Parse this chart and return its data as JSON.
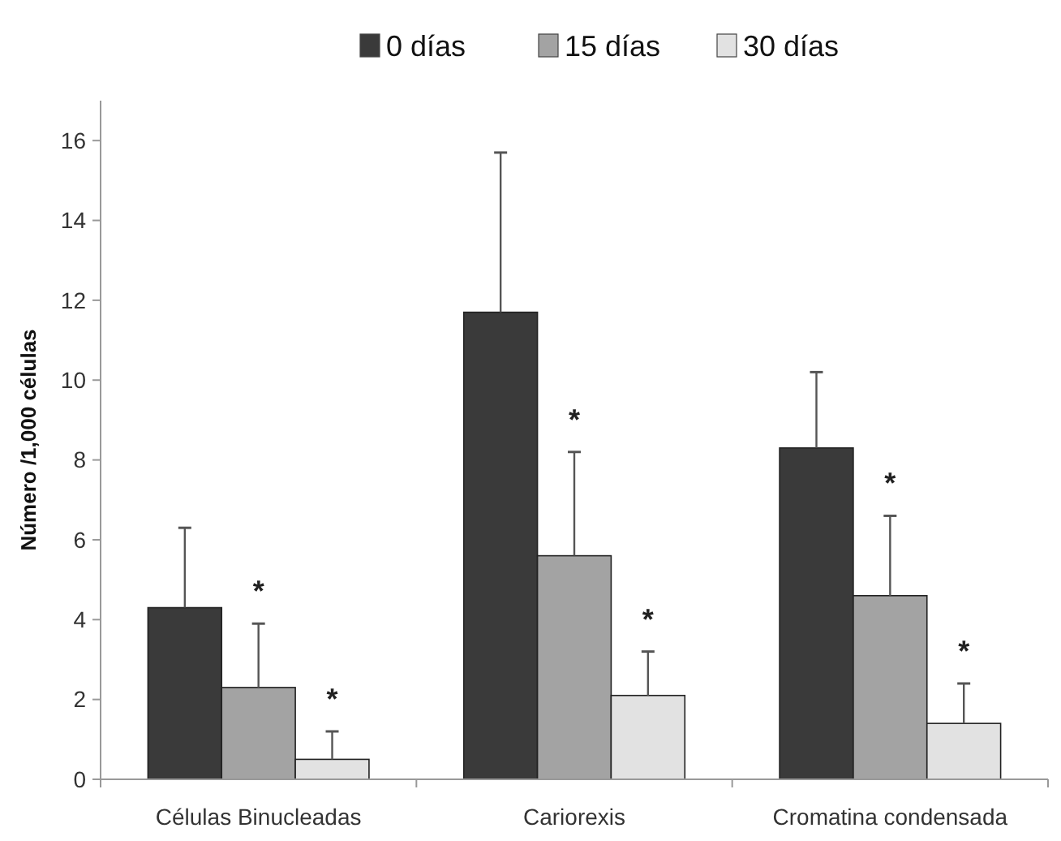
{
  "chart_data": {
    "type": "bar",
    "ylabel": "Número /1,000 células",
    "categories": [
      "Células Binucleadas",
      "Cariorexis",
      "Cromatina condensada"
    ],
    "series": [
      {
        "name": "0 días",
        "color": "#3a3a3a",
        "values": [
          4.3,
          11.7,
          8.3
        ],
        "errors": [
          [
            4.3,
            6.3
          ],
          [
            11.7,
            15.7
          ],
          [
            8.3,
            10.2
          ]
        ]
      },
      {
        "name": "15 días",
        "color": "#a3a3a3",
        "values": [
          2.3,
          5.6,
          4.6
        ],
        "errors": [
          [
            2.3,
            3.9
          ],
          [
            5.6,
            8.2
          ],
          [
            4.6,
            6.6
          ]
        ]
      },
      {
        "name": "30 días",
        "color": "#e2e2e2",
        "values": [
          0.5,
          2.1,
          1.4
        ],
        "errors": [
          [
            0.5,
            1.2
          ],
          [
            2.1,
            3.2
          ],
          [
            1.4,
            2.4
          ]
        ]
      }
    ],
    "annotations": [
      "*",
      "*",
      "*",
      "*",
      "*",
      "*"
    ],
    "ylim": [
      0,
      17
    ],
    "yticks": [
      0,
      2,
      4,
      6,
      8,
      10,
      12,
      14,
      16
    ],
    "grid": false,
    "legend": "top"
  }
}
